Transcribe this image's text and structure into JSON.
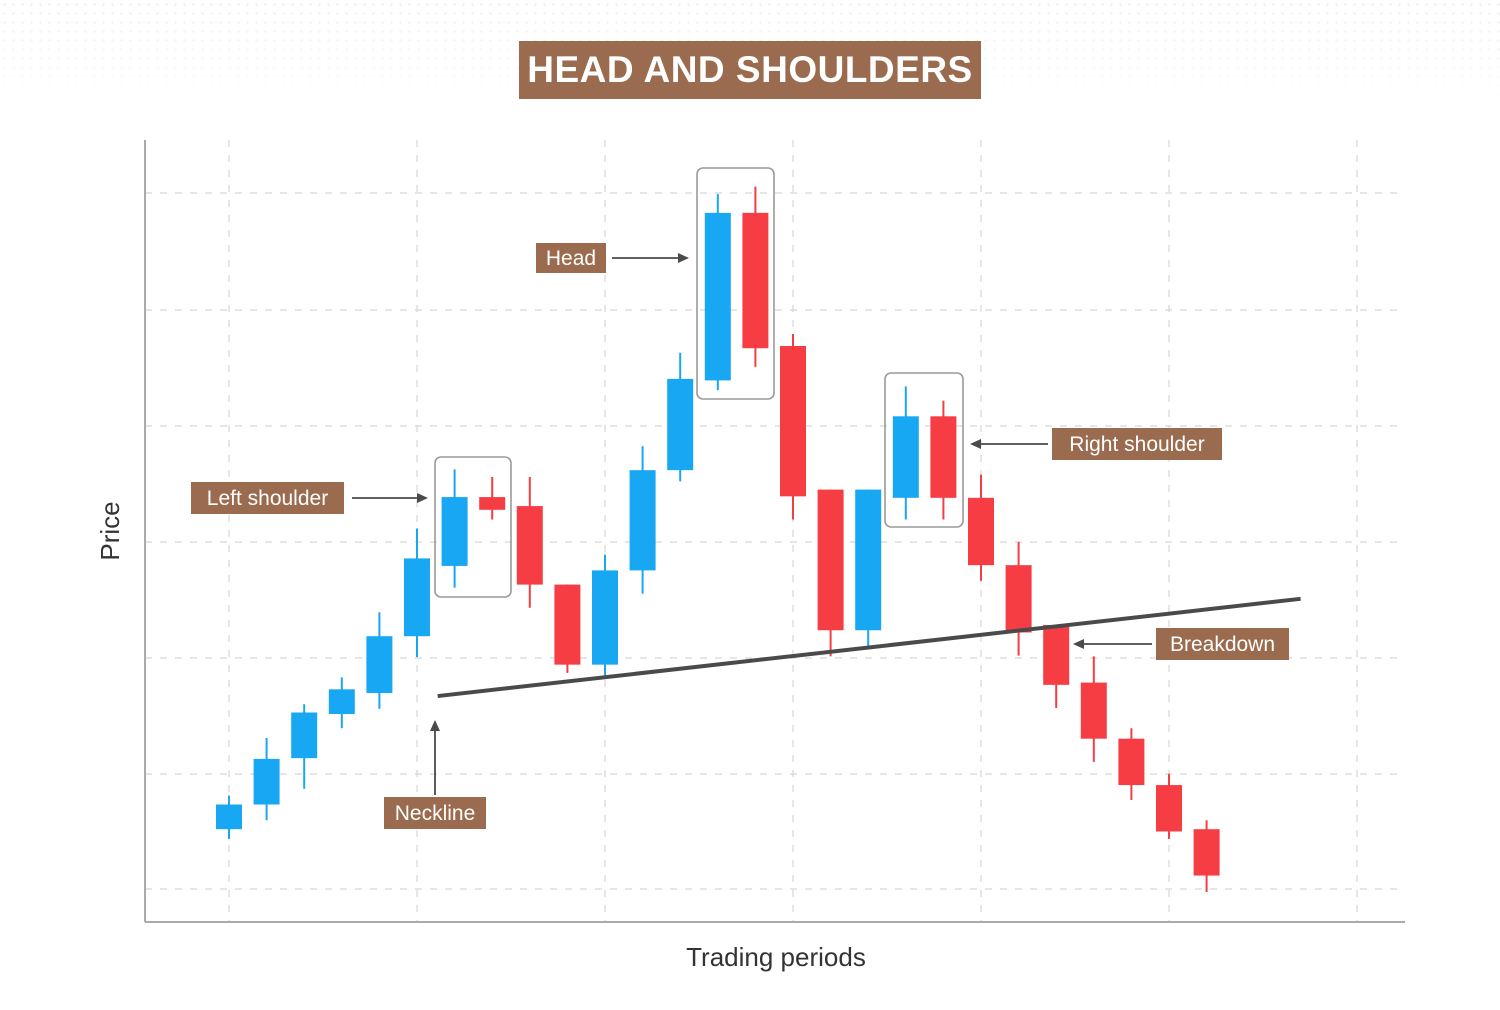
{
  "title": "HEAD AND SHOULDERS",
  "colors": {
    "bullish": "#18a7f2",
    "bearish": "#f63d44",
    "label_bg": "#9a6b4e",
    "neckline": "#4a4a4a"
  },
  "chart_data": {
    "type": "candlestick",
    "title": "HEAD AND SHOULDERS",
    "xlabel": "Trading periods",
    "ylabel": "Price",
    "grid": true,
    "ylim": [
      0,
      100
    ],
    "candles": [
      {
        "open": 10.0,
        "close": 13.3,
        "high": 14.5,
        "low": 8.7,
        "dir": "up"
      },
      {
        "open": 13.3,
        "close": 19.4,
        "high": 22.2,
        "low": 11.2,
        "dir": "up"
      },
      {
        "open": 19.5,
        "close": 25.6,
        "high": 26.7,
        "low": 15.4,
        "dir": "up"
      },
      {
        "open": 25.4,
        "close": 28.7,
        "high": 30.3,
        "low": 23.5,
        "dir": "up"
      },
      {
        "open": 28.2,
        "close": 35.8,
        "high": 39.0,
        "low": 26.1,
        "dir": "up"
      },
      {
        "open": 35.8,
        "close": 46.2,
        "high": 50.2,
        "low": 33.0,
        "dir": "up"
      },
      {
        "open": 45.2,
        "close": 54.4,
        "high": 58.1,
        "low": 42.3,
        "dir": "up"
      },
      {
        "open": 54.4,
        "close": 52.7,
        "high": 57.1,
        "low": 51.4,
        "dir": "down"
      },
      {
        "open": 53.2,
        "close": 42.7,
        "high": 57.1,
        "low": 39.6,
        "dir": "down"
      },
      {
        "open": 42.7,
        "close": 32.0,
        "high": 42.7,
        "low": 30.9,
        "dir": "down"
      },
      {
        "open": 32.0,
        "close": 44.6,
        "high": 46.7,
        "low": 30.3,
        "dir": "up"
      },
      {
        "open": 44.6,
        "close": 58.0,
        "high": 61.2,
        "low": 41.5,
        "dir": "up"
      },
      {
        "open": 58.0,
        "close": 70.2,
        "high": 73.7,
        "low": 56.5,
        "dir": "up"
      },
      {
        "open": 70.0,
        "close": 92.4,
        "high": 94.9,
        "low": 68.7,
        "dir": "up"
      },
      {
        "open": 92.4,
        "close": 74.3,
        "high": 95.9,
        "low": 71.8,
        "dir": "down"
      },
      {
        "open": 74.6,
        "close": 54.5,
        "high": 76.2,
        "low": 51.4,
        "dir": "down"
      },
      {
        "open": 55.4,
        "close": 36.6,
        "high": 55.4,
        "low": 33.1,
        "dir": "down"
      },
      {
        "open": 36.6,
        "close": 55.4,
        "high": 55.4,
        "low": 34.3,
        "dir": "up"
      },
      {
        "open": 54.3,
        "close": 65.2,
        "high": 69.2,
        "low": 51.4,
        "dir": "up"
      },
      {
        "open": 65.2,
        "close": 54.3,
        "high": 67.3,
        "low": 51.4,
        "dir": "down"
      },
      {
        "open": 54.3,
        "close": 45.3,
        "high": 57.4,
        "low": 43.2,
        "dir": "down"
      },
      {
        "open": 45.3,
        "close": 36.3,
        "high": 48.4,
        "low": 33.2,
        "dir": "down"
      },
      {
        "open": 37.3,
        "close": 29.3,
        "high": 37.3,
        "low": 26.2,
        "dir": "down"
      },
      {
        "open": 29.6,
        "close": 22.1,
        "high": 33.1,
        "low": 19.0,
        "dir": "down"
      },
      {
        "open": 22.1,
        "close": 15.9,
        "high": 23.5,
        "low": 13.9,
        "dir": "down"
      },
      {
        "open": 15.9,
        "close": 9.7,
        "high": 17.4,
        "low": 8.7,
        "dir": "down"
      },
      {
        "open": 10.0,
        "close": 3.8,
        "high": 11.2,
        "low": 1.6,
        "dir": "down"
      }
    ],
    "neckline": {
      "from_period": 5.55,
      "from_value": 27.8,
      "to_period": 28.5,
      "to_value": 40.8
    },
    "annotations": [
      {
        "text": "Left shoulder",
        "periods": [
          7,
          8
        ]
      },
      {
        "text": "Head",
        "periods": [
          14,
          15
        ]
      },
      {
        "text": "Right shoulder",
        "periods": [
          19,
          20
        ]
      },
      {
        "text": "Breakdown",
        "periods": [
          22
        ]
      },
      {
        "text": "Neckline",
        "period": 6.5
      }
    ]
  }
}
